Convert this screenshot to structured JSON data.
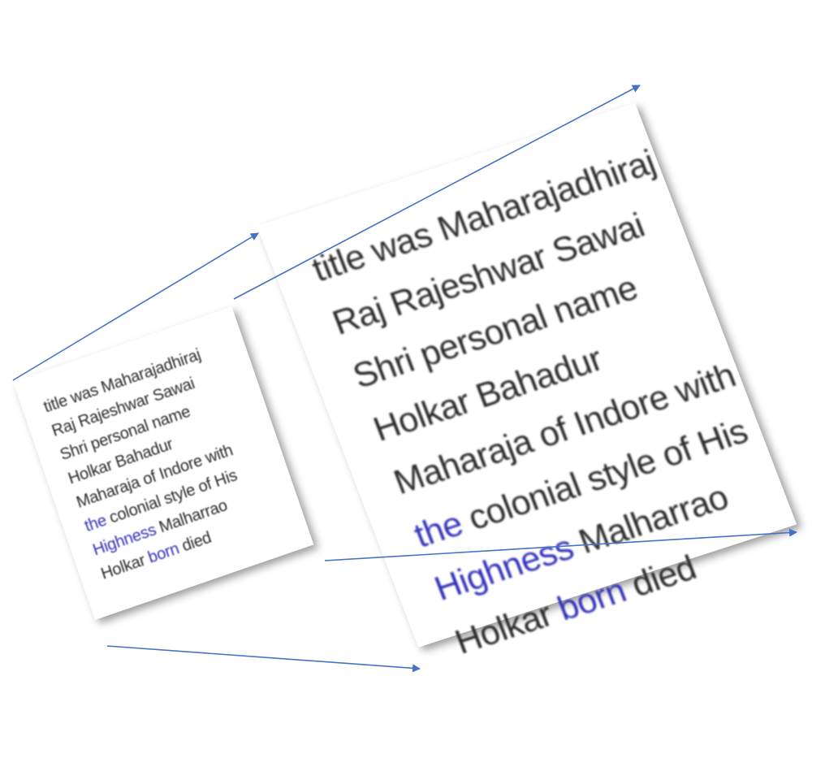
{
  "lines": [
    [
      {
        "t": "title was Maharajadhiraj"
      }
    ],
    [
      {
        "t": "Raj Rajeshwar Sawai"
      }
    ],
    [
      {
        "t": "Shri personal name"
      }
    ],
    [
      {
        "t": "Holkar Bahadur"
      }
    ],
    [
      {
        "t": "Maharaja of Indore with"
      }
    ],
    [
      {
        "t": "the",
        "blue": true
      },
      {
        "t": " colonial style of His"
      }
    ],
    [
      {
        "t": "Highness",
        "blue": true
      },
      {
        "t": " Malharrao"
      }
    ],
    [
      {
        "t": "Holkar "
      },
      {
        "t": "born",
        "blue": true
      },
      {
        "t": " died"
      }
    ]
  ],
  "colors": {
    "text": "#2b2b2b",
    "highlight_text": "#3232b9",
    "arrow": "#4472c4"
  }
}
